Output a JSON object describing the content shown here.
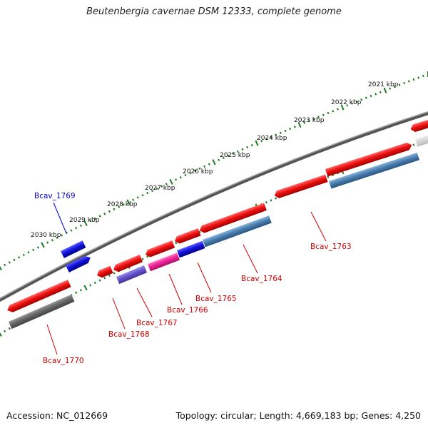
{
  "title": "Beutenbergia cavernae DSM 12333, complete genome",
  "footer": {
    "accession": "Accession: NC_012669",
    "summary": "Topology: circular; Length: 4,669,183 bp; Genes: 4,250"
  },
  "ruler_labels": [
    "2021 kbp",
    "2022 kbp",
    "2023 kbp",
    "2024 kbp",
    "2025 kbp",
    "2026 kbp",
    "2027 kbp",
    "2028 kbp",
    "2029 kbp",
    "2030 kbp"
  ],
  "gene_labels": [
    "Bcav_1769",
    "Bcav_1770",
    "Bcav_1768",
    "Bcav_1767",
    "Bcav_1766",
    "Bcav_1765",
    "Bcav_1764",
    "Bcav_1763"
  ],
  "colors": {
    "gene_red": "#ee1111",
    "gene_blue": "#1414dd",
    "steel_blue": "#4a7fb0",
    "gray": "#666666",
    "pink": "#ee2299",
    "purple": "#6655cc",
    "ruler_green": "#1f7a1f",
    "label_red": "#cc0000",
    "label_blue": "#0000cc"
  }
}
